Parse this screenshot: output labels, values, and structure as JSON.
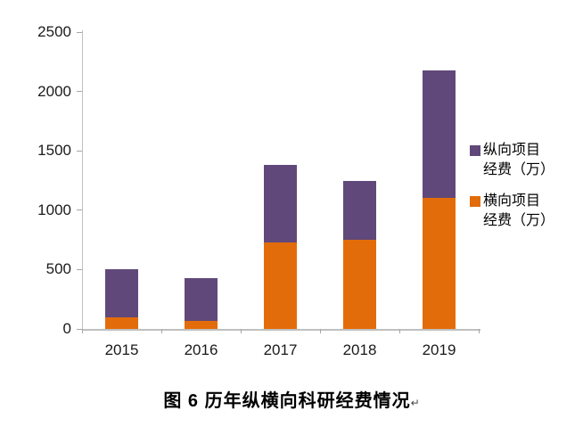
{
  "figure": {
    "caption": "图 6 历年纵横向科研经费情况",
    "return_mark": "↵"
  },
  "chart_data": {
    "type": "bar",
    "stacked": true,
    "title": "",
    "xlabel": "",
    "ylabel": "",
    "categories": [
      "2015",
      "2016",
      "2017",
      "2018",
      "2019"
    ],
    "series": [
      {
        "key": "horizontal_funding",
        "name": "横向项目经费（万）",
        "color": "#E36C0A",
        "values": [
          100,
          70,
          730,
          750,
          1100
        ]
      },
      {
        "key": "vertical_funding",
        "name": "纵向项目经费（万）",
        "color": "#60497A",
        "values": [
          400,
          360,
          650,
          495,
          1075
        ]
      }
    ],
    "stack_totals": [
      500,
      430,
      1380,
      1245,
      2175
    ],
    "ylim": [
      0,
      2500
    ],
    "yticks": [
      0,
      500,
      1000,
      1500,
      2000,
      2500
    ],
    "grid": false,
    "legend_position": "right-center",
    "legend": [
      {
        "key": "vertical_funding",
        "line1": "纵向项目",
        "line2": "经费（万）",
        "color": "#60497A"
      },
      {
        "key": "horizontal_funding",
        "line1": "横向项目",
        "line2": "经费（万）",
        "color": "#E36C0A"
      }
    ]
  },
  "style": {
    "axis_color": "#BFBFBF",
    "tick_color": "#A6A6A6",
    "label_color": "#1A1A1A",
    "background": "#FFFFFF"
  }
}
